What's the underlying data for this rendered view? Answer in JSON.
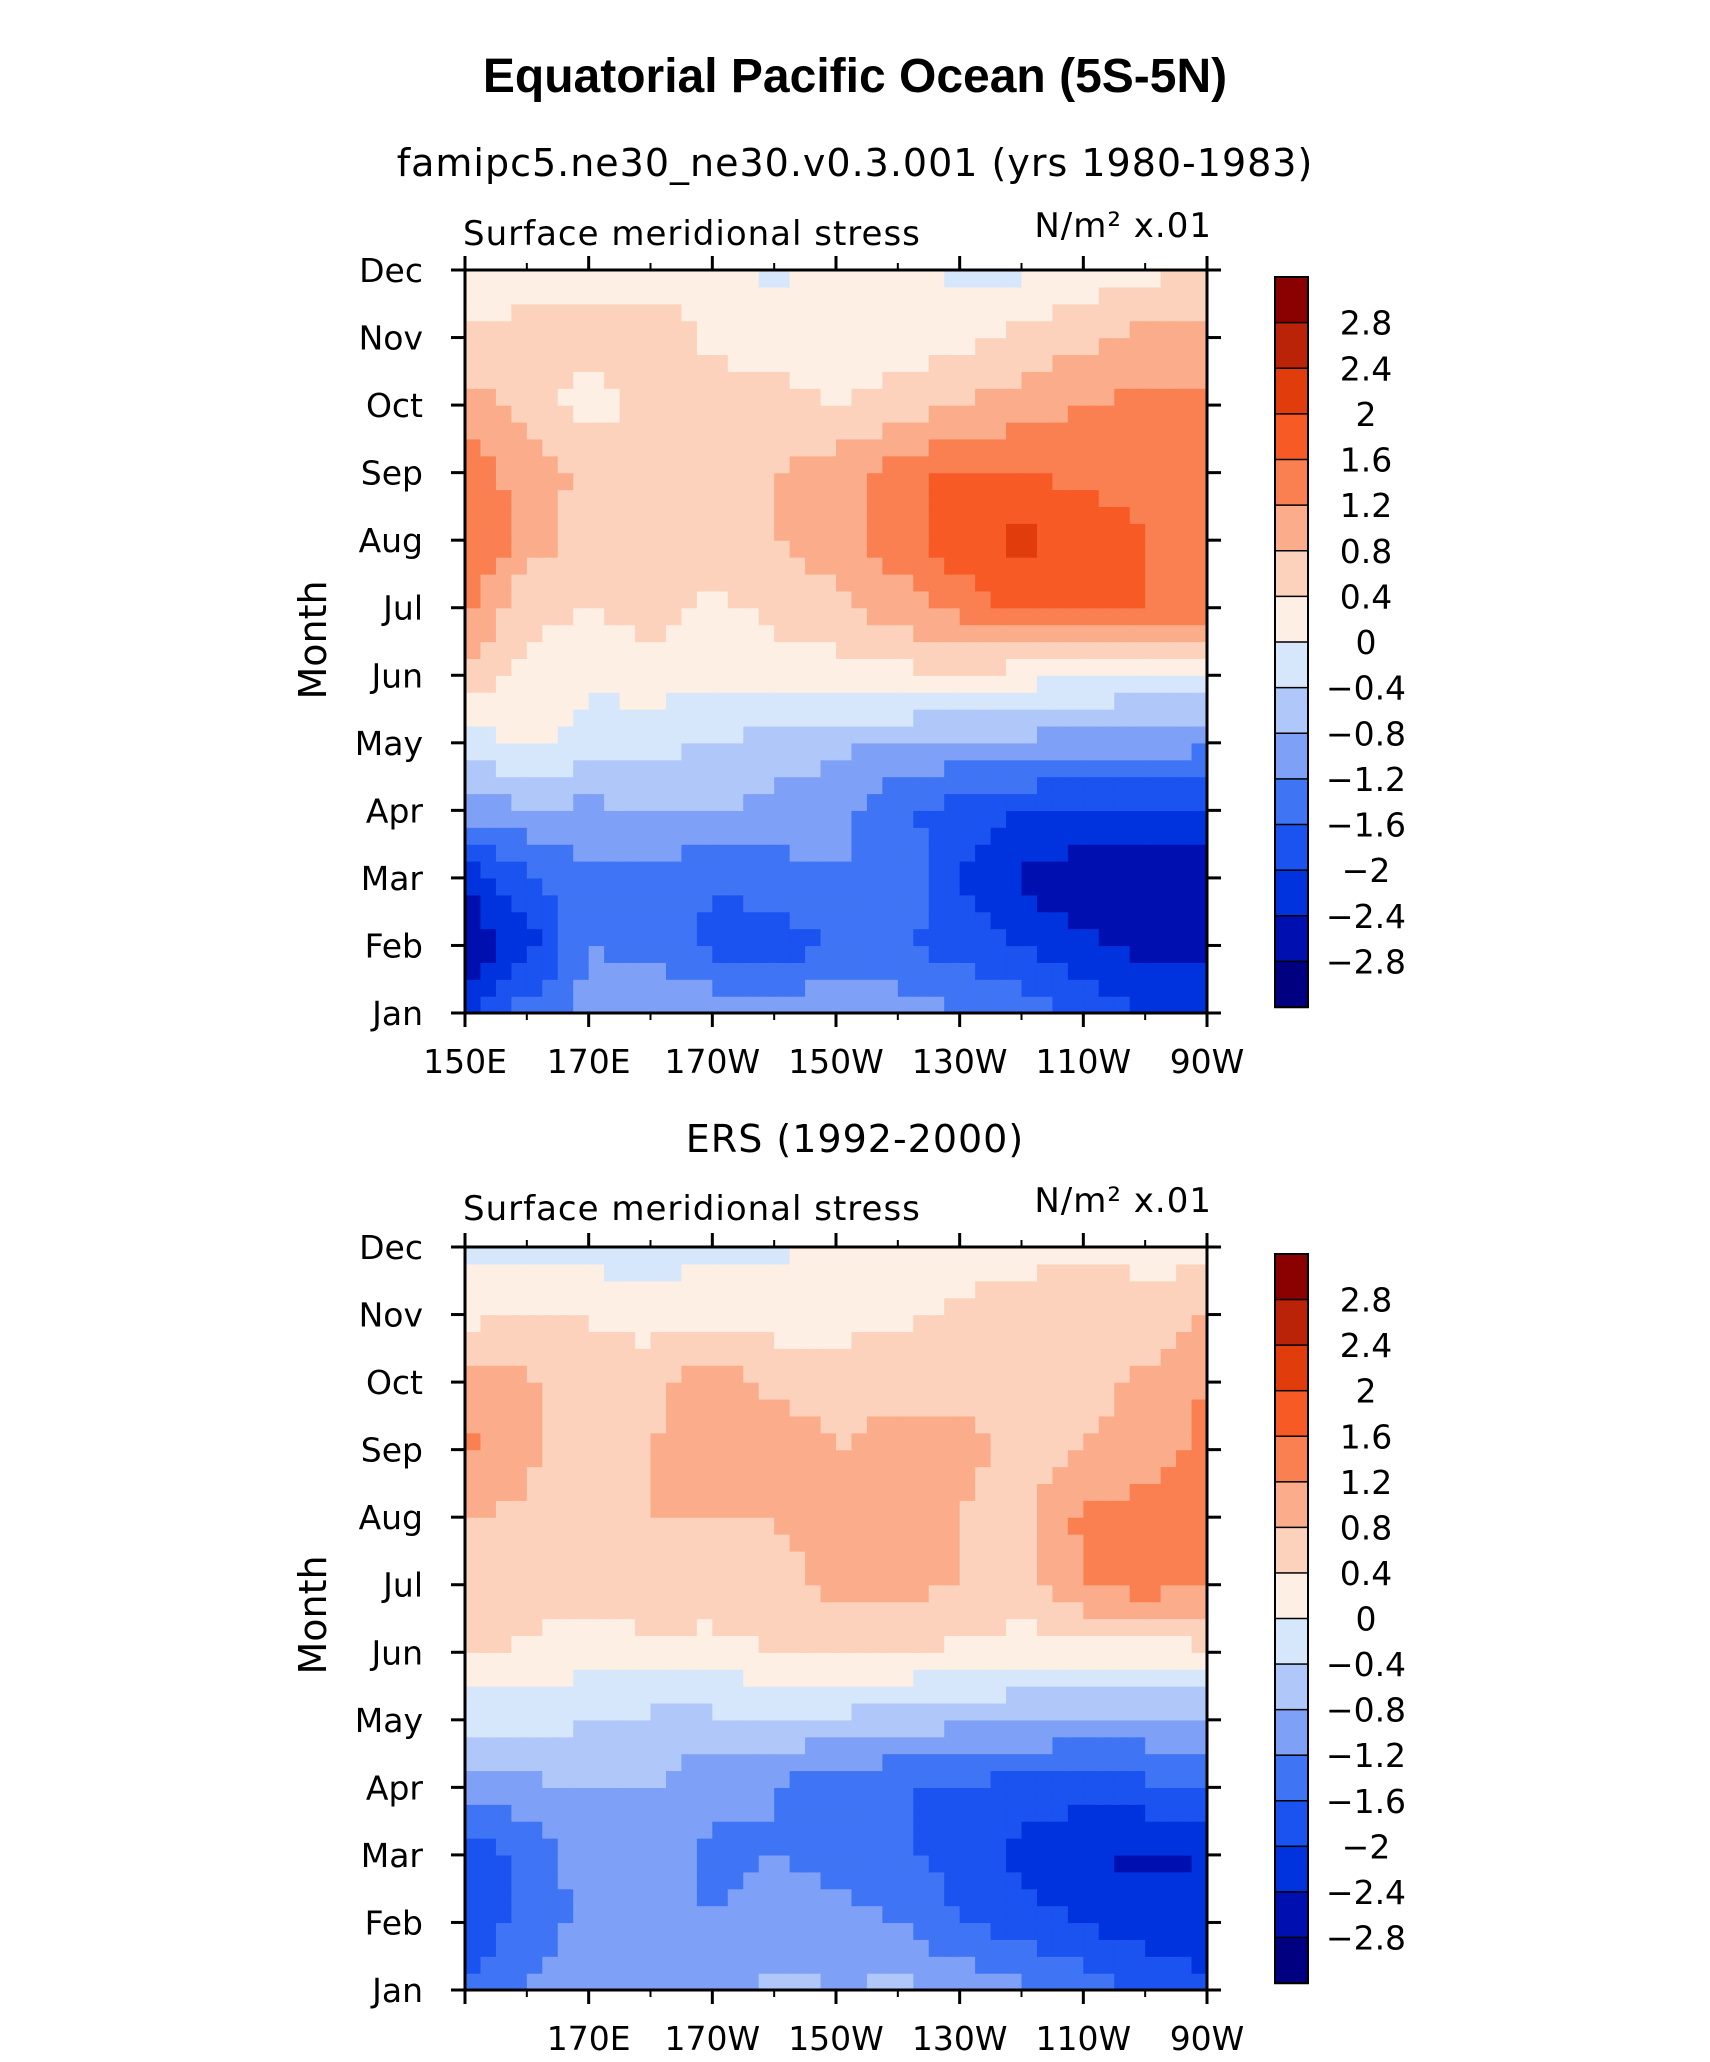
{
  "title": "Equatorial Pacific Ocean (5S-5N)",
  "colors": [
    "#000080",
    "#0010b0",
    "#0033dd",
    "#1a53f0",
    "#3f74f5",
    "#7ea0f7",
    "#b0c7fa",
    "#d6e6fb",
    "#fdefe3",
    "#fcd2bc",
    "#fbac8a",
    "#fa7f51",
    "#f85a26",
    "#e03c0c",
    "#ba2307",
    "#8b0000"
  ],
  "chart_data": [
    {
      "type": "heatmap",
      "subtitle": "famipc5.ne30_ne30.v0.3.001 (yrs 1980-1983)",
      "variable": "Surface meridional stress",
      "units": "N/m² x.01",
      "xlabel": "",
      "ylabel": "Month",
      "x_ticks": [
        "150E",
        "170E",
        "170W",
        "150W",
        "130W",
        "110W",
        "90W"
      ],
      "y_ticks": [
        "Jan",
        "Feb",
        "Mar",
        "Apr",
        "May",
        "Jun",
        "Jul",
        "Aug",
        "Sep",
        "Oct",
        "Nov",
        "Dec"
      ],
      "colorbar_labels": [
        "2.8",
        "2.4",
        "2",
        "1.6",
        "1.2",
        "0.8",
        "0.4",
        "0",
        "-0.4",
        "-0.8",
        "-1.2",
        "-1.6",
        "-2",
        "-2.4",
        "-2.8"
      ],
      "x": [
        150,
        160,
        170,
        180,
        190,
        200,
        210,
        220,
        230,
        240,
        250,
        260,
        270
      ],
      "z": [
        [
          -2.0,
          -1.4,
          -1.0,
          -0.9,
          -0.9,
          -0.9,
          -0.9,
          -1.0,
          -1.2,
          -1.4,
          -1.7,
          -2.0,
          -2.1
        ],
        [
          -2.8,
          -2.2,
          -1.2,
          -1.3,
          -1.7,
          -1.8,
          -1.6,
          -1.5,
          -1.8,
          -2.0,
          -2.3,
          -2.5,
          -2.5
        ],
        [
          -2.4,
          -1.6,
          -1.3,
          -1.3,
          -1.6,
          -1.4,
          -1.2,
          -1.3,
          -2.0,
          -2.5,
          -2.7,
          -2.8,
          -2.7
        ],
        [
          -1.0,
          -0.9,
          -0.9,
          -0.8,
          -0.8,
          -0.9,
          -1.1,
          -1.5,
          -1.8,
          -2.0,
          -2.0,
          -2.1,
          -2.1
        ],
        [
          -0.3,
          0.1,
          -0.2,
          -0.3,
          -0.4,
          -0.6,
          -0.7,
          -0.8,
          -0.9,
          -0.9,
          -1.0,
          -1.0,
          -1.1
        ],
        [
          0.6,
          0.3,
          0.1,
          0.2,
          0.1,
          0.2,
          0.2,
          0.3,
          0.3,
          0.2,
          0.0,
          -0.1,
          -0.2
        ],
        [
          1.3,
          0.5,
          0.4,
          0.6,
          0.3,
          0.5,
          0.7,
          1.0,
          1.3,
          1.7,
          1.7,
          1.6,
          1.5
        ],
        [
          1.7,
          1.0,
          0.6,
          0.7,
          0.5,
          0.8,
          1.0,
          1.4,
          1.9,
          2.1,
          1.8,
          1.6,
          1.5
        ],
        [
          1.5,
          1.0,
          0.7,
          0.7,
          0.6,
          0.8,
          1.0,
          1.4,
          1.7,
          1.6,
          1.5,
          1.5,
          1.4
        ],
        [
          1.0,
          0.6,
          0.2,
          0.6,
          0.6,
          0.5,
          0.4,
          0.6,
          0.8,
          1.0,
          1.2,
          1.3,
          1.3
        ],
        [
          0.5,
          0.6,
          0.6,
          0.7,
          0.3,
          0.3,
          0.2,
          0.1,
          0.3,
          0.5,
          0.7,
          0.9,
          1.0
        ],
        [
          -0.1,
          0.2,
          0.2,
          0.2,
          0.1,
          -0.1,
          0.1,
          0.1,
          -0.1,
          -0.1,
          0.1,
          0.3,
          0.4
        ]
      ]
    },
    {
      "type": "heatmap",
      "subtitle": "ERS (1992-2000)",
      "variable": "Surface meridional stress",
      "units": "N/m² x.01",
      "xlabel": "",
      "ylabel": "Month",
      "x_ticks": [
        "170E",
        "170W",
        "150W",
        "130W",
        "110W",
        "90W"
      ],
      "y_ticks": [
        "Jan",
        "Feb",
        "Mar",
        "Apr",
        "May",
        "Jun",
        "Jul",
        "Aug",
        "Sep",
        "Oct",
        "Nov",
        "Dec"
      ],
      "colorbar_labels": [
        "2.8",
        "2.4",
        "2",
        "1.6",
        "1.2",
        "0.8",
        "0.4",
        "0",
        "-0.4",
        "-0.8",
        "-1.2",
        "-1.6",
        "-2",
        "-2.4",
        "-2.8"
      ],
      "x": [
        150,
        160,
        170,
        180,
        190,
        200,
        210,
        220,
        230,
        240,
        250,
        260,
        270
      ],
      "z": [
        [
          -1.5,
          -1.2,
          -1.0,
          -1.0,
          -0.9,
          -0.7,
          -0.8,
          -0.7,
          -0.9,
          -1.1,
          -1.4,
          -1.7,
          -1.9
        ],
        [
          -2.0,
          -1.4,
          -1.1,
          -1.1,
          -1.2,
          -1.0,
          -1.1,
          -1.2,
          -1.6,
          -1.8,
          -2.0,
          -2.2,
          -2.3
        ],
        [
          -2.0,
          -1.5,
          -1.0,
          -0.9,
          -1.3,
          -1.2,
          -1.3,
          -1.5,
          -1.8,
          -2.1,
          -2.4,
          -2.5,
          -2.4
        ],
        [
          -1.0,
          -0.9,
          -0.8,
          -0.8,
          -1.1,
          -1.2,
          -1.5,
          -1.6,
          -1.6,
          -1.8,
          -1.8,
          -1.7,
          -1.7
        ],
        [
          -0.3,
          -0.2,
          -0.4,
          -0.5,
          -0.5,
          -0.4,
          -0.5,
          -0.6,
          -0.7,
          -0.8,
          -0.9,
          -0.9,
          -0.9
        ],
        [
          0.5,
          0.3,
          0.2,
          0.3,
          0.2,
          0.4,
          0.4,
          0.4,
          0.3,
          0.2,
          0.2,
          0.2,
          0.3
        ],
        [
          0.7,
          0.6,
          0.5,
          0.7,
          0.7,
          0.7,
          0.9,
          0.9,
          0.8,
          0.6,
          1.2,
          1.4,
          1.2
        ],
        [
          0.8,
          0.7,
          0.6,
          0.8,
          0.8,
          0.8,
          0.9,
          0.9,
          0.8,
          0.6,
          1.3,
          1.4,
          1.3
        ],
        [
          1.3,
          0.9,
          0.5,
          0.8,
          0.9,
          1.0,
          0.8,
          0.9,
          0.9,
          0.7,
          0.8,
          1.0,
          1.3
        ],
        [
          0.9,
          0.9,
          0.5,
          0.7,
          1.1,
          0.7,
          0.7,
          0.7,
          0.7,
          0.6,
          0.6,
          0.9,
          1.2
        ],
        [
          0.3,
          0.4,
          0.4,
          0.2,
          0.3,
          0.2,
          0.2,
          0.3,
          0.5,
          0.6,
          0.8,
          0.5,
          0.8
        ],
        [
          -0.2,
          -0.1,
          -0.2,
          -0.2,
          -0.1,
          -0.1,
          0.1,
          0.1,
          0.2,
          0.2,
          0.3,
          0.3,
          0.2
        ]
      ]
    }
  ]
}
